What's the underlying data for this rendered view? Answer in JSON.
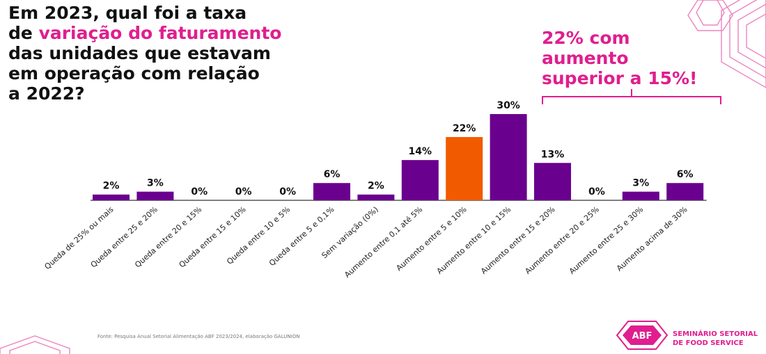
{
  "title": {
    "line1": "Em 2023, qual foi a taxa",
    "line2_prefix": "de ",
    "line2_highlight": "variação do faturamento",
    "line3": "das unidades que estavam",
    "line4": "em operação com relação",
    "line5": "a 2022?"
  },
  "callout": {
    "line1": "22% com",
    "line2": "aumento",
    "line3": "superior a 15%!"
  },
  "source": "Fonte: Pesquisa Anual Setorial Alimentação ABF 2023/2024, elaboração GALUNION",
  "logo": {
    "mark": "ABF",
    "line1": "SEMINÁRIO SETORIAL",
    "line2": "DE FOOD SERVICE"
  },
  "colors": {
    "bar": "#6a008e",
    "highlight_bar": "#f25a00",
    "accent": "#e01e8e",
    "text": "#111111"
  },
  "chart_data": {
    "type": "bar",
    "title": "Em 2023, qual foi a taxa de variação do faturamento das unidades que estavam em operação com relação a 2022?",
    "xlabel": "",
    "ylabel": "",
    "ylim": [
      0,
      30
    ],
    "highlight_index": 8,
    "categories": [
      "Queda de 25% ou mais",
      "Queda entre 25 e 20%",
      "Queda entre 20 e 15%",
      "Queda entre 15 e 10%",
      "Queda entre 10 e 5%",
      "Queda entre 5 e 0,1%",
      "Sem variação (0%)",
      "Aumento entre 0,1 até 5%",
      "Aumento entre 5 e 10%",
      "Aumento entre 10 e 15%",
      "Aumento entre 15 e 20%",
      "Aumento entre 20 e 25%",
      "Aumento entre 25 e 30%",
      "Aumento acima de 30%"
    ],
    "values": [
      2,
      3,
      0,
      0,
      0,
      6,
      2,
      14,
      22,
      30,
      13,
      0,
      3,
      6
    ],
    "labels": [
      "2%",
      "3%",
      "0%",
      "0%",
      "0%",
      "6%",
      "2%",
      "14%",
      "22%",
      "30%",
      "13%",
      "0%",
      "3%",
      "6%"
    ]
  }
}
